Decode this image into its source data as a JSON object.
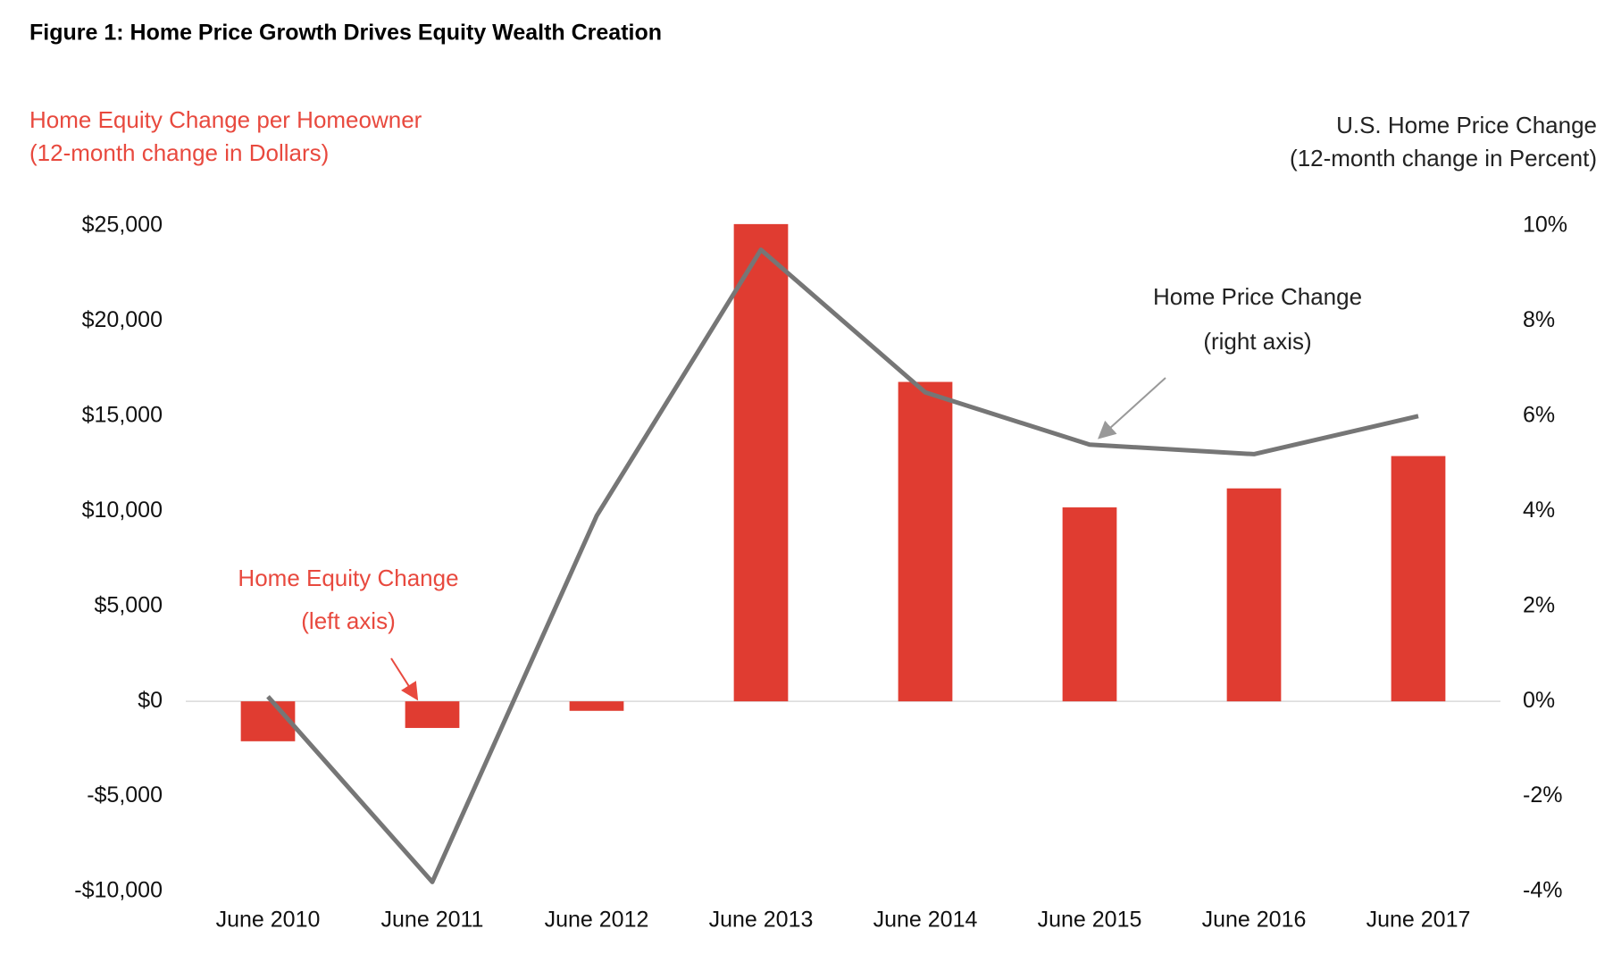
{
  "chart_data": {
    "type": "bar",
    "title": "Figure 1: Home Price Growth Drives Equity Wealth Creation",
    "y_label": [
      "Home Equity Change per Homeowner",
      "(12-month change in Dollars)"
    ],
    "y2_label": [
      "U.S. Home Price Change",
      "(12-month change in Percent)"
    ],
    "categories": [
      "June 2010",
      "June 2011",
      "June 2012",
      "June 2013",
      "June 2014",
      "June 2015",
      "June 2016",
      "June 2017"
    ],
    "series": [
      {
        "name": "Home Equity Change",
        "type": "bar",
        "color": "#e03c31",
        "values": [
          -2100,
          -1400,
          -500,
          25100,
          16800,
          10200,
          11200,
          12900
        ]
      },
      {
        "name": "Home Price Change",
        "type": "line",
        "axis": "y2",
        "color": "#767676",
        "values": [
          0.1,
          -3.8,
          3.9,
          9.5,
          6.5,
          5.4,
          5.2,
          6.0
        ]
      }
    ],
    "annotations": [
      "(left axis)",
      "(right axis)"
    ],
    "ylim": [
      -10000,
      25000
    ],
    "yticks": [
      {
        "value": -10000,
        "label": "-$10,000"
      },
      {
        "value": -5000,
        "label": "-$5,000"
      },
      {
        "value": 0,
        "label": "$0"
      },
      {
        "value": 5000,
        "label": "$5,000"
      },
      {
        "value": 10000,
        "label": "$10,000"
      },
      {
        "value": 15000,
        "label": "$15,000"
      },
      {
        "value": 20000,
        "label": "$20,000"
      },
      {
        "value": 25000,
        "label": "$25,000"
      }
    ],
    "y2lim": [
      -4,
      10
    ],
    "y2ticks": [
      {
        "value": -4,
        "label": "-4%"
      },
      {
        "value": -2,
        "label": "-2%"
      },
      {
        "value": 0,
        "label": "0%"
      },
      {
        "value": 2,
        "label": "2%"
      },
      {
        "value": 4,
        "label": "4%"
      },
      {
        "value": 6,
        "label": "6%"
      },
      {
        "value": 8,
        "label": "8%"
      },
      {
        "value": 10,
        "label": "10%"
      }
    ]
  }
}
